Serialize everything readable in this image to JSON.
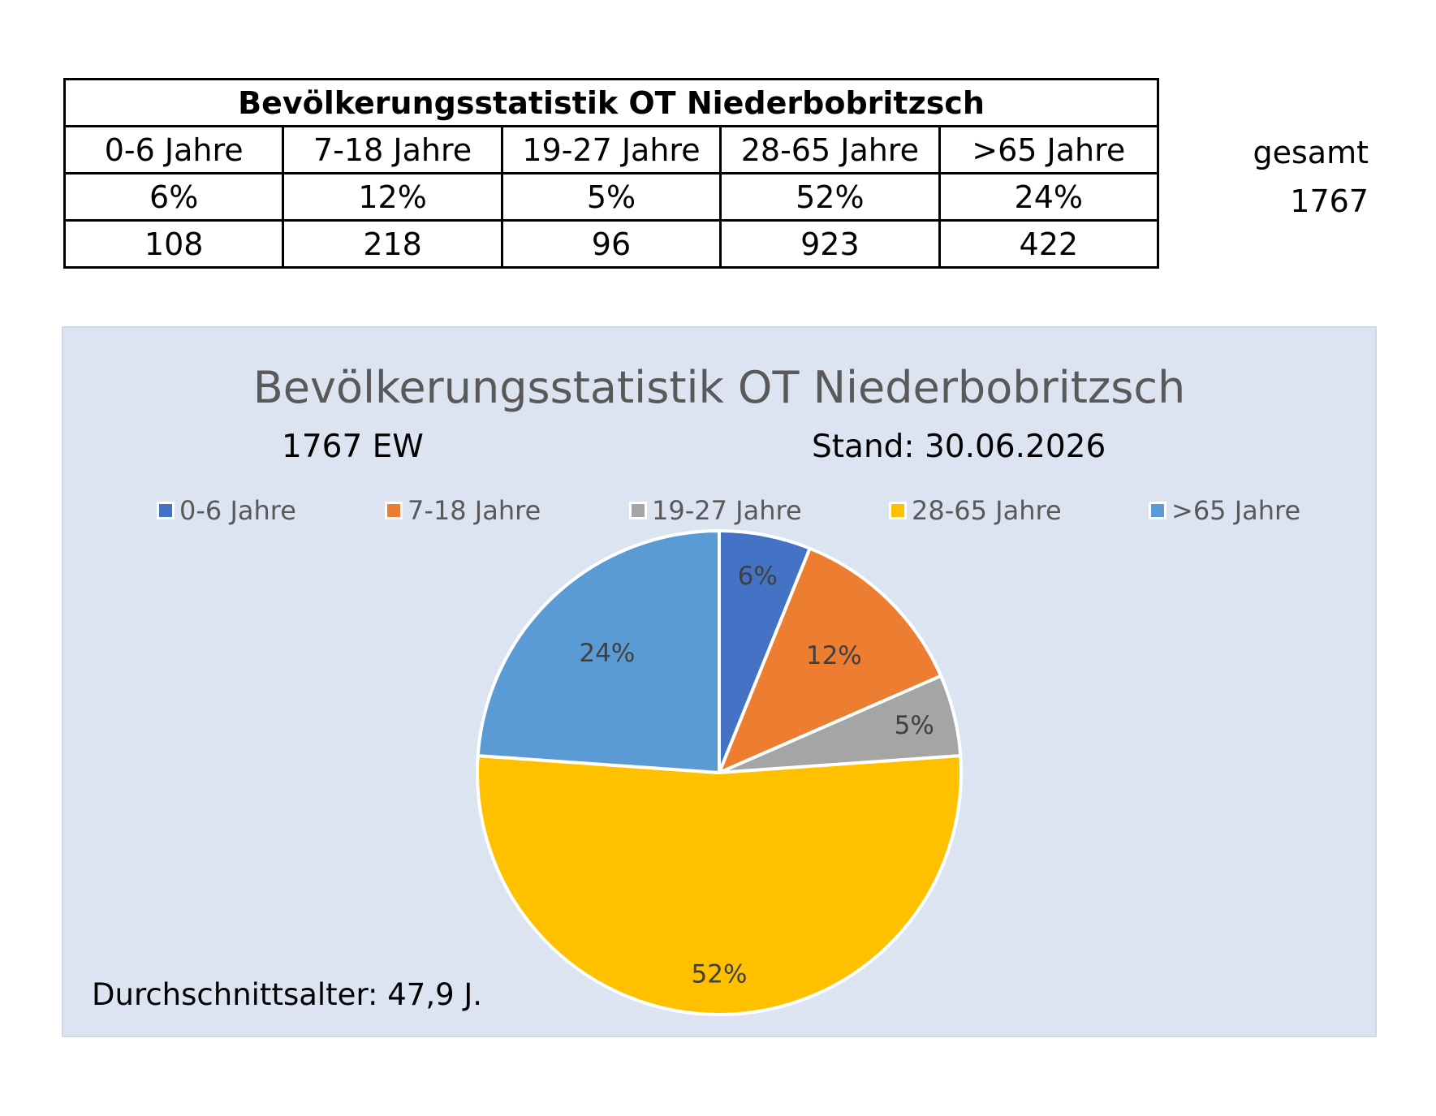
{
  "table": {
    "title": "Bevölkerungsstatistik OT Niederbobritzsch",
    "headers": [
      "0-6 Jahre",
      "7-18 Jahre",
      "19-27 Jahre",
      "28-65 Jahre",
      ">65 Jahre"
    ],
    "percent_row": [
      "6%",
      "12%",
      "5%",
      "52%",
      "24%"
    ],
    "count_row": [
      "108",
      "218",
      "96",
      "923",
      "422"
    ],
    "total_label": "gesamt",
    "total_value": "1767"
  },
  "chart_info": {
    "subtitle_left": "1767 EW",
    "subtitle_right": "Stand: 30.06.2026",
    "average_age": "Durchschnittsalter: 47,9 J."
  },
  "chart_data": {
    "type": "pie",
    "title": "Bevölkerungsstatistik OT Niederbobritzsch",
    "categories": [
      "0-6 Jahre",
      "7-18 Jahre",
      "19-27 Jahre",
      "28-65 Jahre",
      ">65 Jahre"
    ],
    "values": [
      108,
      218,
      96,
      923,
      422
    ],
    "labels": [
      "6%",
      "12%",
      "5%",
      "52%",
      "24%"
    ],
    "colors": [
      "#4472c4",
      "#ed7d31",
      "#a5a5a5",
      "#ffc000",
      "#5b9bd5"
    ],
    "legend": "top"
  }
}
